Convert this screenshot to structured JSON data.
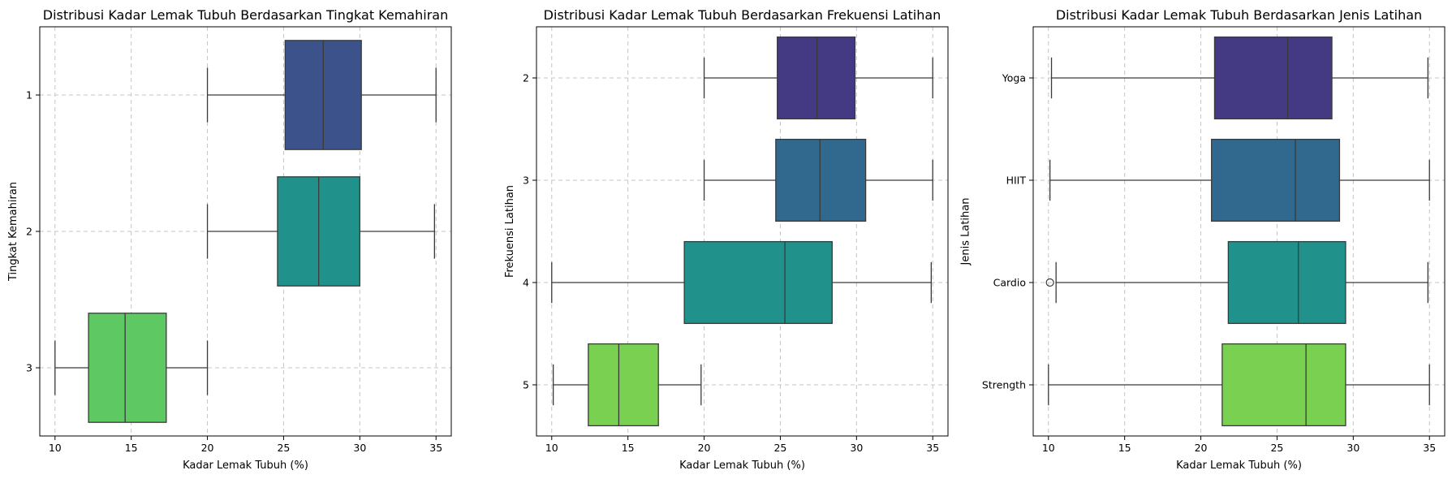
{
  "chart_data": [
    {
      "type": "boxplot",
      "orientation": "horizontal",
      "title": "Distribusi Kadar Lemak Tubuh Berdasarkan Tingkat Kemahiran",
      "xlabel": "Kadar Lemak Tubuh (%)",
      "ylabel": "Tingkat Kemahiran",
      "xlim": [
        9,
        36
      ],
      "xticks": [
        10,
        15,
        20,
        25,
        30,
        35
      ],
      "grid": true,
      "categories": [
        "1",
        "2",
        "3"
      ],
      "boxes": [
        {
          "category": "1",
          "whisker_low": 20,
          "q1": 25.1,
          "median": 27.6,
          "q3": 30.1,
          "whisker_high": 35,
          "outliers": [],
          "color": "#3b528b"
        },
        {
          "category": "2",
          "whisker_low": 20,
          "q1": 24.6,
          "median": 27.3,
          "q3": 30.0,
          "whisker_high": 34.9,
          "outliers": [],
          "color": "#21918c"
        },
        {
          "category": "3",
          "whisker_low": 10,
          "q1": 12.2,
          "median": 14.6,
          "q3": 17.3,
          "whisker_high": 20,
          "outliers": [],
          "color": "#5ec962"
        }
      ]
    },
    {
      "type": "boxplot",
      "orientation": "horizontal",
      "title": "Distribusi Kadar Lemak Tubuh Berdasarkan Frekuensi Latihan",
      "xlabel": "Kadar Lemak Tubuh (%)",
      "ylabel": "Frekuensi Latihan",
      "xlim": [
        9,
        36
      ],
      "xticks": [
        10,
        15,
        20,
        25,
        30,
        35
      ],
      "grid": true,
      "categories": [
        "2",
        "3",
        "4",
        "5"
      ],
      "boxes": [
        {
          "category": "2",
          "whisker_low": 20,
          "q1": 24.8,
          "median": 27.4,
          "q3": 29.9,
          "whisker_high": 35,
          "outliers": [],
          "color": "#443983"
        },
        {
          "category": "3",
          "whisker_low": 20,
          "q1": 24.7,
          "median": 27.6,
          "q3": 30.6,
          "whisker_high": 35,
          "outliers": [],
          "color": "#31688e"
        },
        {
          "category": "4",
          "whisker_low": 10,
          "q1": 18.7,
          "median": 25.3,
          "q3": 28.4,
          "whisker_high": 34.9,
          "outliers": [],
          "color": "#21918c"
        },
        {
          "category": "5",
          "whisker_low": 10.1,
          "q1": 12.4,
          "median": 14.4,
          "q3": 17.0,
          "whisker_high": 19.8,
          "outliers": [],
          "color": "#7ad151"
        }
      ]
    },
    {
      "type": "boxplot",
      "orientation": "horizontal",
      "title": "Distribusi Kadar Lemak Tubuh Berdasarkan Jenis Latihan",
      "xlabel": "Kadar Lemak Tubuh (%)",
      "ylabel": "Jenis Latihan",
      "xlim": [
        9,
        36
      ],
      "xticks": [
        10,
        15,
        20,
        25,
        30,
        35
      ],
      "grid": true,
      "categories": [
        "Yoga",
        "HIIT",
        "Cardio",
        "Strength"
      ],
      "boxes": [
        {
          "category": "Yoga",
          "whisker_low": 10.2,
          "q1": 20.9,
          "median": 25.7,
          "q3": 28.6,
          "whisker_high": 34.9,
          "outliers": [],
          "color": "#443983"
        },
        {
          "category": "HIIT",
          "whisker_low": 10.1,
          "q1": 20.7,
          "median": 26.2,
          "q3": 29.1,
          "whisker_high": 35,
          "outliers": [],
          "color": "#31688e"
        },
        {
          "category": "Cardio",
          "whisker_low": 10.5,
          "q1": 21.8,
          "median": 26.4,
          "q3": 29.5,
          "whisker_high": 34.9,
          "outliers": [
            10.1
          ],
          "color": "#21918c"
        },
        {
          "category": "Strength",
          "whisker_low": 10,
          "q1": 21.4,
          "median": 26.9,
          "q3": 29.5,
          "whisker_high": 35,
          "outliers": [],
          "color": "#7ad151"
        }
      ]
    }
  ]
}
